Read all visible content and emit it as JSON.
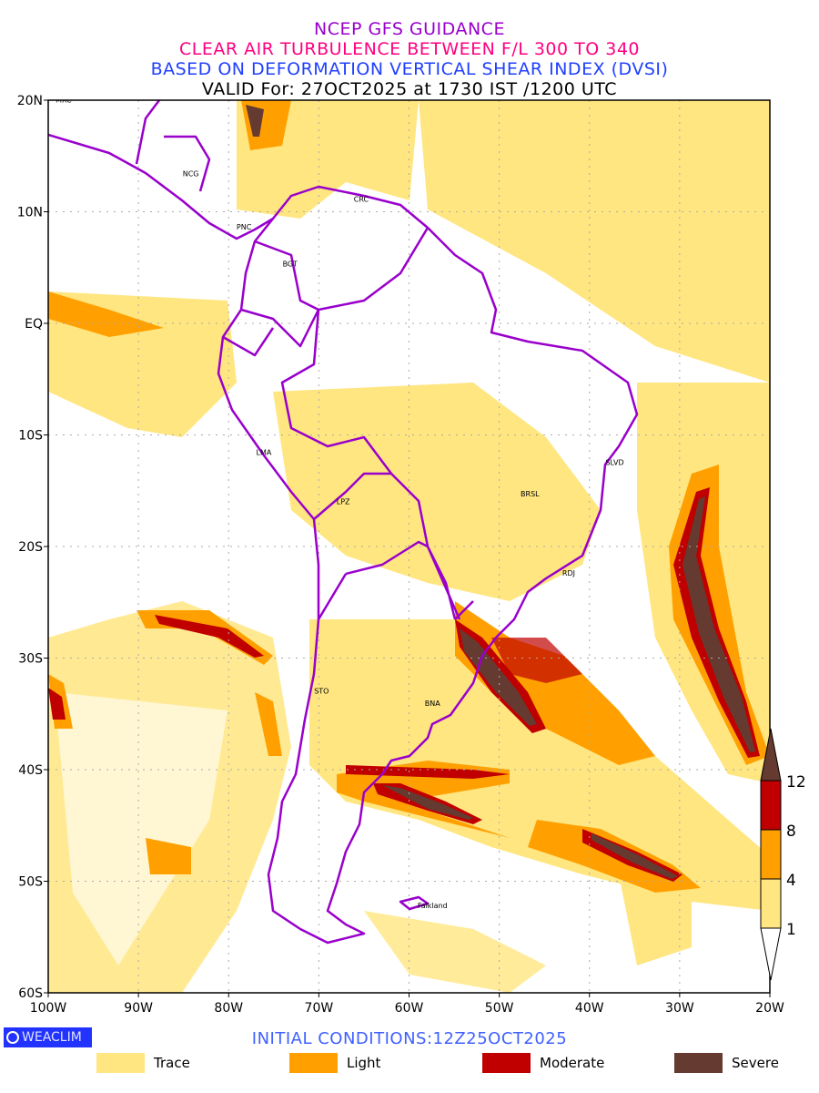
{
  "title": {
    "line1": "NCEP GFS GUIDANCE",
    "line2": "CLEAR AIR TURBULENCE BETWEEN F/L 300 TO 340",
    "line3": "BASED ON DEFORMATION VERTICAL SHEAR INDEX (DVSI)",
    "line4": "VALID For: 27OCT2025 at 1730 IST /1200 UTC"
  },
  "map": {
    "lon_range": [
      -100,
      -20
    ],
    "lat_range": [
      -60,
      20
    ],
    "x_ticks": [
      {
        "v": -100,
        "l": "100W"
      },
      {
        "v": -90,
        "l": "90W"
      },
      {
        "v": -80,
        "l": "80W"
      },
      {
        "v": -70,
        "l": "70W"
      },
      {
        "v": -60,
        "l": "60W"
      },
      {
        "v": -50,
        "l": "50W"
      },
      {
        "v": -40,
        "l": "40W"
      },
      {
        "v": -30,
        "l": "30W"
      },
      {
        "v": -20,
        "l": "20W"
      }
    ],
    "y_ticks": [
      {
        "v": 20,
        "l": "20N"
      },
      {
        "v": 10,
        "l": "10N"
      },
      {
        "v": 0,
        "l": "EQ"
      },
      {
        "v": -10,
        "l": "10S"
      },
      {
        "v": -20,
        "l": "20S"
      },
      {
        "v": -30,
        "l": "30S"
      },
      {
        "v": -40,
        "l": "40S"
      },
      {
        "v": -50,
        "l": "50S"
      },
      {
        "v": -60,
        "l": "60S"
      }
    ],
    "cities": [
      {
        "name": "MXC",
        "lon": -98.3,
        "lat": 19.8
      },
      {
        "name": "NCG",
        "lon": -84.2,
        "lat": 13.2
      },
      {
        "name": "PNC",
        "lon": -78.3,
        "lat": 8.4
      },
      {
        "name": "CRC",
        "lon": -65.3,
        "lat": 10.9
      },
      {
        "name": "BGT",
        "lon": -73.2,
        "lat": 5.1
      },
      {
        "name": "LMA",
        "lon": -76.1,
        "lat": -11.8
      },
      {
        "name": "LPZ",
        "lon": -67.3,
        "lat": -16.2
      },
      {
        "name": "BRSL",
        "lon": -46.6,
        "lat": -15.5
      },
      {
        "name": "SLVD",
        "lon": -37.2,
        "lat": -12.7
      },
      {
        "name": "RDJ",
        "lon": -42.3,
        "lat": -22.6
      },
      {
        "name": "STO",
        "lon": -69.7,
        "lat": -33.2
      },
      {
        "name": "BNA",
        "lon": -57.4,
        "lat": -34.3
      },
      {
        "name": "Falkland",
        "lon": -57.4,
        "lat": -52.4
      }
    ],
    "border_color": "#9900cc"
  },
  "colorbar": {
    "levels": [
      "1",
      "4",
      "8",
      "12"
    ],
    "colors": [
      "#ffe680",
      "#ffa000",
      "#c00000",
      "#653a30"
    ]
  },
  "footer": {
    "logo": "WEACLIM",
    "initial_conditions": "INITIAL  CONDITIONS:12Z25OCT2025"
  },
  "legend": [
    {
      "label": "Trace",
      "color": "#ffe680"
    },
    {
      "label": "Light",
      "color": "#ffa000"
    },
    {
      "label": "Moderate",
      "color": "#c00000"
    },
    {
      "label": "Severe",
      "color": "#653a30"
    }
  ]
}
